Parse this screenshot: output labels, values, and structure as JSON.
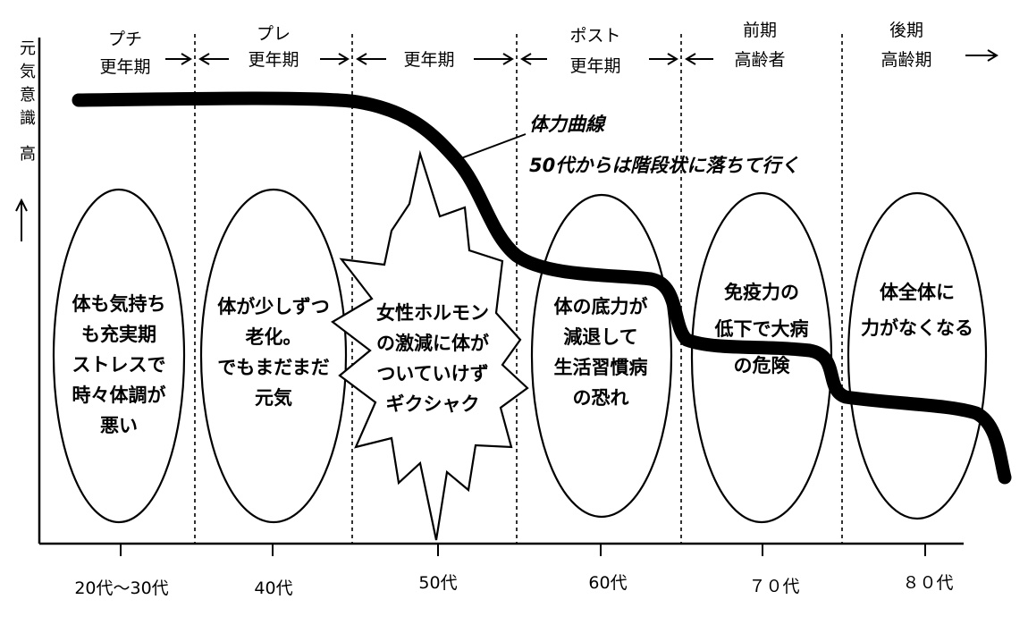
{
  "y_axis": {
    "label_chars": [
      "元",
      "気",
      "意",
      "識"
    ],
    "level": "高",
    "arrow": "↑"
  },
  "phases": [
    {
      "lines": [
        "プチ",
        "更年期"
      ]
    },
    {
      "lines": [
        "プレ",
        "更年期"
      ]
    },
    {
      "lines": [
        "更年期"
      ]
    },
    {
      "lines": [
        "ポスト",
        "更年期"
      ]
    },
    {
      "lines": [
        "前期",
        "高齢者"
      ]
    },
    {
      "lines": [
        "後期",
        "高齢期"
      ]
    }
  ],
  "x_labels": [
    "20代～30代",
    "40代",
    "50代",
    "60代",
    "７０代",
    "８０代"
  ],
  "curve_label": {
    "line1": "体力曲線",
    "line2": "50代からは階段状に落ちて行く"
  },
  "bubbles": [
    {
      "shape": "ellipse",
      "lines": [
        "体も気持ち",
        "も充実期",
        "ストレスで",
        "時々体調が",
        "悪い"
      ]
    },
    {
      "shape": "ellipse",
      "lines": [
        "体が少しずつ",
        "老化。",
        "でもまだまだ",
        "元気"
      ]
    },
    {
      "shape": "burst",
      "lines": [
        "女性ホルモン",
        "の激減に体が",
        "ついていけず",
        "ギクシャク"
      ]
    },
    {
      "shape": "ellipse",
      "lines": [
        "体の底力が",
        "減退して",
        "生活習慣病",
        "の恐れ"
      ]
    },
    {
      "shape": "ellipse",
      "lines": [
        "免疫力の",
        "低下で大病",
        "の危険"
      ]
    },
    {
      "shape": "ellipse",
      "lines": [
        "体全体に",
        "力がなくなる"
      ]
    }
  ]
}
